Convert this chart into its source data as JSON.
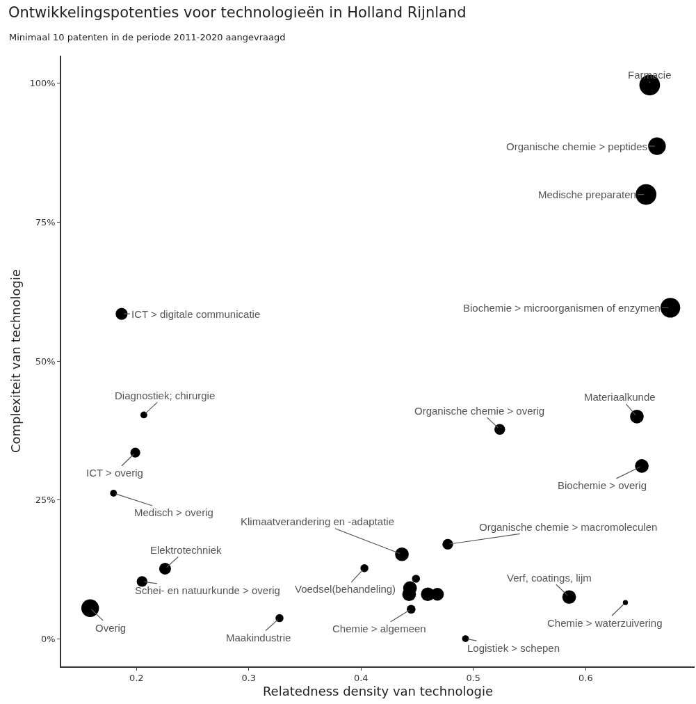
{
  "chart_data": {
    "type": "bubble",
    "title": "Ontwikkelingspotenties voor technologieën in Holland Rijnland",
    "subtitle": "Minimaal 10 patenten in de periode 2011-2020 aangevraagd",
    "xlabel": "Relatedness density van technologie",
    "ylabel": "Complexiteit van technologie",
    "series": [
      {
        "color": "#000000",
        "x": [
          0.657,
          0.6635,
          0.6538,
          0.6754,
          0.1868,
          0.2066,
          0.199,
          0.1796,
          0.2255,
          0.205,
          0.1588,
          0.3274,
          0.4364,
          0.403,
          0.4446,
          0.493,
          0.5235,
          0.6456,
          0.65,
          0.4772,
          0.5853,
          0.6354,
          0.4489,
          0.4436,
          0.4428,
          0.4594,
          0.468
        ],
        "values": [
          99.7,
          88.7,
          80.0,
          59.6,
          58.5,
          40.3,
          33.5,
          26.2,
          12.6,
          10.3,
          5.5,
          3.7,
          15.2,
          12.7,
          5.3,
          0.0,
          37.7,
          40.0,
          31.1,
          17.0,
          7.5,
          6.5,
          10.8,
          9.1,
          8.0,
          8.0,
          8.0
        ],
        "sizes": [
          1,
          0.73,
          1,
          0.91,
          0.33,
          0.11,
          0.23,
          0.11,
          0.33,
          0.27,
          0.73,
          0.15,
          0.44,
          0.15,
          0.18,
          0.11,
          0.27,
          0.44,
          0.44,
          0.27,
          0.44,
          0.06,
          0.15,
          0.44,
          0.44,
          0.44,
          0.38
        ]
      }
    ],
    "annotations": [
      {
        "text": "Farmacie",
        "x": 0.657,
        "y": 99.7
      },
      {
        "text": "Organische chemie > peptides",
        "x": 0.6635,
        "y": 88.7
      },
      {
        "text": "Medische preparaten",
        "x": 0.6538,
        "y": 80.0
      },
      {
        "text": "Biochemie > microorganismen of enzymen",
        "x": 0.6754,
        "y": 59.6
      },
      {
        "text": "ICT > digitale communicatie",
        "x": 0.1868,
        "y": 58.5
      },
      {
        "text": "Diagnostiek; chirurgie",
        "x": 0.2066,
        "y": 40.3
      },
      {
        "text": "ICT > overig",
        "x": 0.199,
        "y": 33.5
      },
      {
        "text": "Medisch > overig",
        "x": 0.1796,
        "y": 26.2
      },
      {
        "text": "Elektrotechniek",
        "x": 0.2255,
        "y": 12.6
      },
      {
        "text": "Schei- en natuurkunde > overig",
        "x": 0.205,
        "y": 10.3
      },
      {
        "text": "Overig",
        "x": 0.1588,
        "y": 5.5
      },
      {
        "text": "Maakindustrie",
        "x": 0.3274,
        "y": 3.7
      },
      {
        "text": "Klimaatverandering en -adaptatie",
        "x": 0.4364,
        "y": 15.2
      },
      {
        "text": "Voedsel(behandeling)",
        "x": 0.403,
        "y": 12.7
      },
      {
        "text": "Chemie > algemeen",
        "x": 0.4446,
        "y": 5.3
      },
      {
        "text": "Logistiek > schepen",
        "x": 0.493,
        "y": 0.0
      },
      {
        "text": "Organische chemie > overig",
        "x": 0.5235,
        "y": 37.7
      },
      {
        "text": "Materiaalkunde",
        "x": 0.6456,
        "y": 40.0
      },
      {
        "text": "Biochemie > overig",
        "x": 0.65,
        "y": 31.1
      },
      {
        "text": "Organische chemie > macromoleculen",
        "x": 0.4772,
        "y": 17.0
      },
      {
        "text": "Verf, coatings, lijm",
        "x": 0.5853,
        "y": 7.5
      },
      {
        "text": "Chemie > waterzuivering",
        "x": 0.6354,
        "y": 6.5
      }
    ],
    "xlim": [
      0.133,
      0.697
    ],
    "xticks": [
      0.2,
      0.3,
      0.4,
      0.5,
      0.6
    ],
    "ylim": [
      -5,
      105
    ],
    "yticks": [
      {
        "value": 0,
        "label": "0%"
      },
      {
        "value": 25,
        "label": "25%"
      },
      {
        "value": 50,
        "label": "50%"
      },
      {
        "value": 75,
        "label": "75%"
      },
      {
        "value": 100,
        "label": "100%"
      }
    ],
    "grid": false
  }
}
